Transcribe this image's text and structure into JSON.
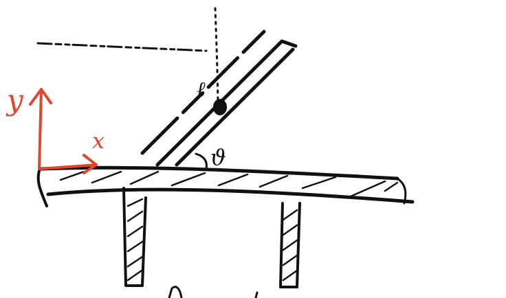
{
  "diagram": {
    "labels": {
      "y_axis": "y",
      "x_axis": "x",
      "rod_length": "ℓ",
      "angle": "ϑ"
    },
    "colors": {
      "ink": "#111111",
      "axes": "#e0452e",
      "background": "#ffffff"
    }
  }
}
